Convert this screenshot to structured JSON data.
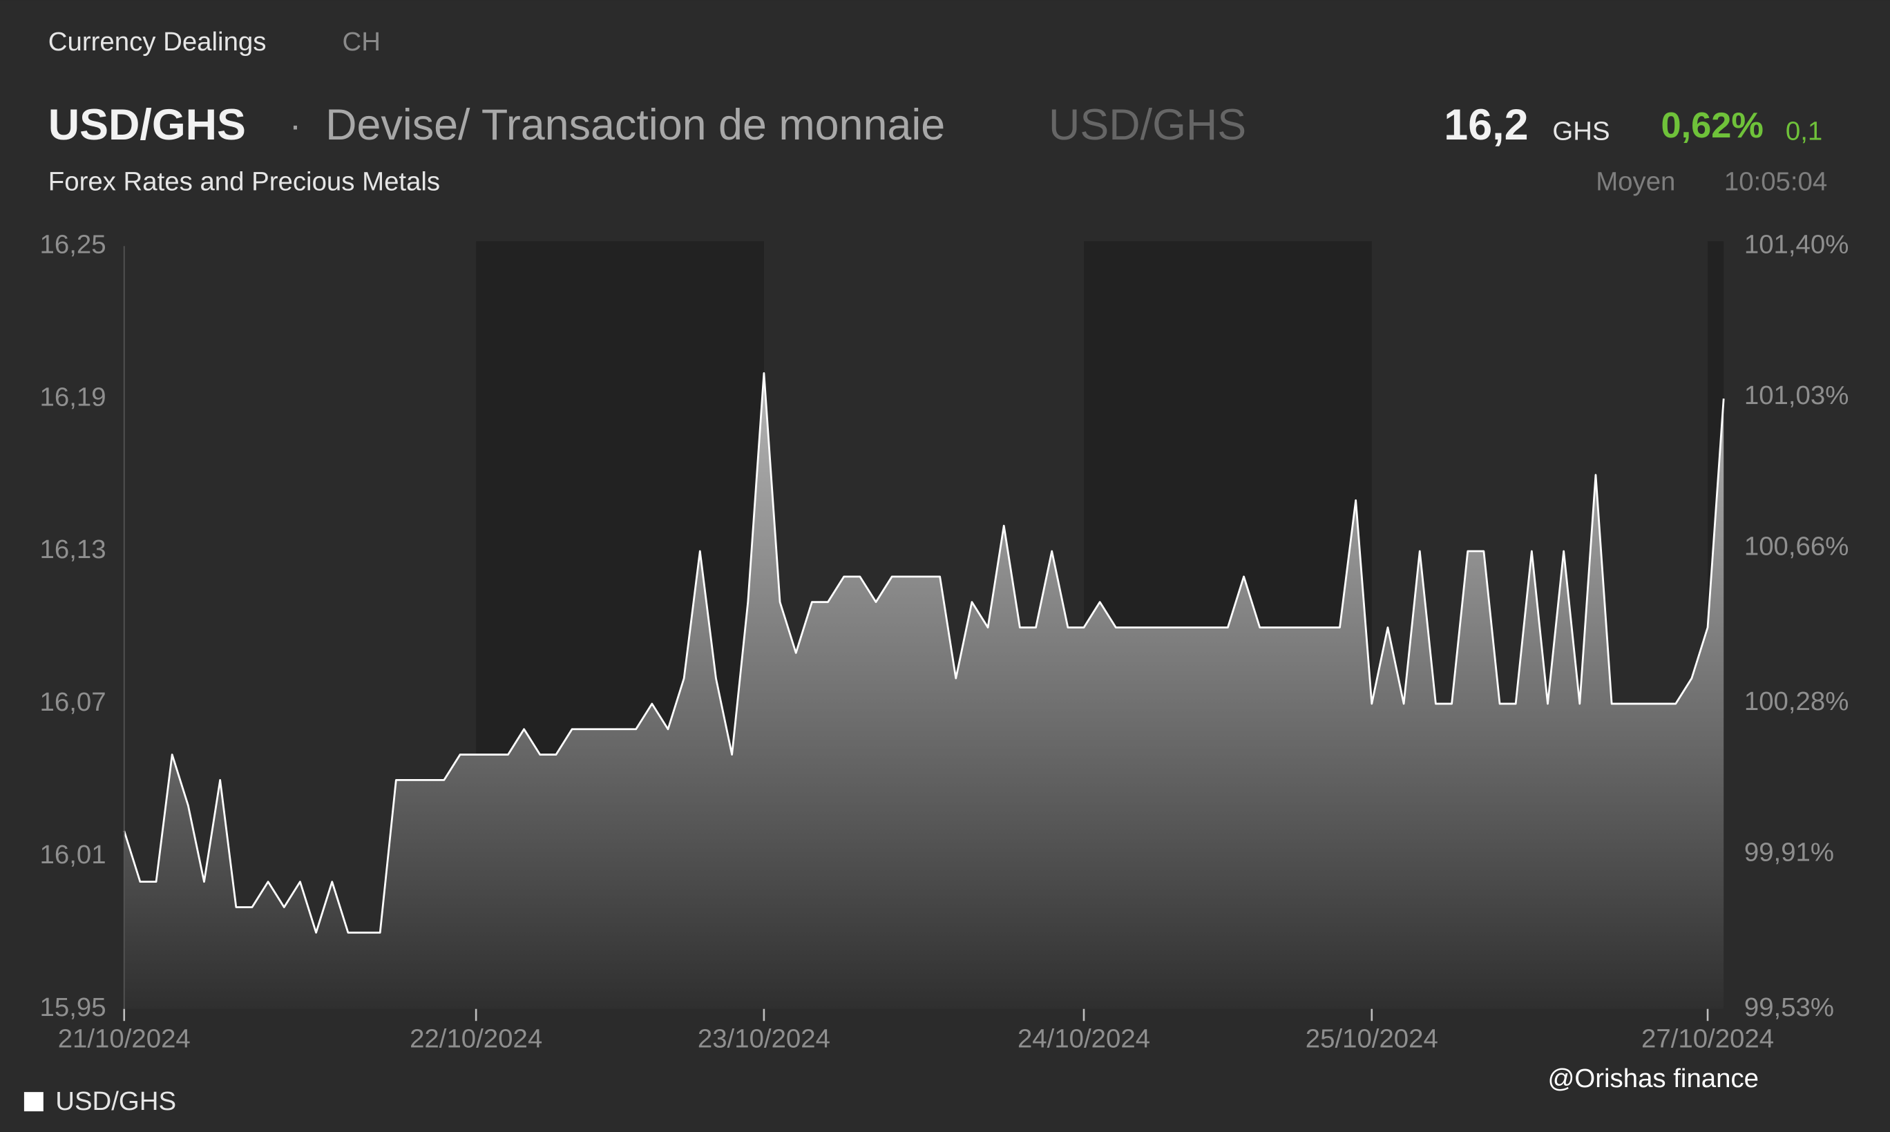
{
  "header": {
    "section": "Currency Dealings",
    "region": "CH",
    "symbol": "USD/GHS",
    "separator": "·",
    "name": "Devise/ Transaction de monnaie",
    "symbol_alt": "USD/GHS",
    "price": "16,2",
    "currency": "GHS",
    "change_pct": "0,62%",
    "change_abs": "0,1",
    "subtitle": "Forex Rates and Precious Metals",
    "price_type": "Moyen",
    "time": "10:05:04"
  },
  "watermark": "@Orishas finance",
  "chart_data": {
    "type": "area",
    "categories": [
      "21/10/2024",
      null,
      null,
      null,
      null,
      null,
      null,
      null,
      null,
      null,
      null,
      null,
      null,
      null,
      null,
      null,
      null,
      null,
      null,
      null,
      null,
      null,
      "22/10/2024",
      null,
      null,
      null,
      null,
      null,
      null,
      null,
      null,
      null,
      null,
      null,
      null,
      null,
      null,
      null,
      null,
      null,
      "23/10/2024",
      null,
      null,
      null,
      null,
      null,
      null,
      null,
      null,
      null,
      null,
      null,
      null,
      null,
      null,
      null,
      null,
      null,
      null,
      null,
      "24/10/2024",
      null,
      null,
      null,
      null,
      null,
      null,
      null,
      null,
      null,
      null,
      null,
      null,
      null,
      null,
      null,
      null,
      null,
      "25/10/2024",
      null,
      null,
      null,
      null,
      null,
      null,
      null,
      null,
      null,
      null,
      null,
      null,
      null,
      null,
      null,
      null,
      null,
      null,
      null,
      null,
      "27/10/2024",
      null
    ],
    "series": [
      {
        "name": "USD/GHS",
        "color": "#ffffff",
        "values": [
          16.02,
          16.0,
          16.0,
          16.05,
          16.03,
          16.0,
          16.04,
          15.99,
          15.99,
          16.0,
          15.99,
          16.0,
          15.98,
          16.0,
          15.98,
          15.98,
          15.98,
          16.04,
          16.04,
          16.04,
          16.04,
          16.05,
          16.05,
          16.05,
          16.05,
          16.06,
          16.05,
          16.05,
          16.06,
          16.06,
          16.06,
          16.06,
          16.06,
          16.07,
          16.06,
          16.08,
          16.13,
          16.08,
          16.05,
          16.11,
          16.2,
          16.11,
          16.09,
          16.11,
          16.11,
          16.12,
          16.12,
          16.11,
          16.12,
          16.12,
          16.12,
          16.12,
          16.08,
          16.11,
          16.1,
          16.14,
          16.1,
          16.1,
          16.13,
          16.1,
          16.1,
          16.11,
          16.1,
          16.1,
          16.1,
          16.1,
          16.1,
          16.1,
          16.1,
          16.1,
          16.12,
          16.1,
          16.1,
          16.1,
          16.1,
          16.1,
          16.1,
          16.15,
          16.07,
          16.1,
          16.07,
          16.13,
          16.07,
          16.07,
          16.13,
          16.13,
          16.07,
          16.07,
          16.13,
          16.07,
          16.13,
          16.07,
          16.16,
          16.07,
          16.07,
          16.07,
          16.07,
          16.07,
          16.08,
          16.1,
          16.19
        ]
      }
    ],
    "ylim": [
      15.95,
      16.25
    ],
    "yticks": [
      {
        "value": 15.95,
        "label": "15,95"
      },
      {
        "value": 16.01,
        "label": "16,01"
      },
      {
        "value": 16.07,
        "label": "16,07"
      },
      {
        "value": 16.13,
        "label": "16,13"
      },
      {
        "value": 16.19,
        "label": "16,19"
      },
      {
        "value": 16.25,
        "label": "16,25"
      }
    ],
    "y2lim": [
      99.53,
      101.4
    ],
    "y2ticks": [
      {
        "value": 99.53,
        "label": "99,53%"
      },
      {
        "value": 99.91,
        "label": "99,91%"
      },
      {
        "value": 100.28,
        "label": "100,28%"
      },
      {
        "value": 100.66,
        "label": "100,66%"
      },
      {
        "value": 101.03,
        "label": "101,03%"
      },
      {
        "value": 101.4,
        "label": "101,40%"
      }
    ],
    "grid": false
  }
}
